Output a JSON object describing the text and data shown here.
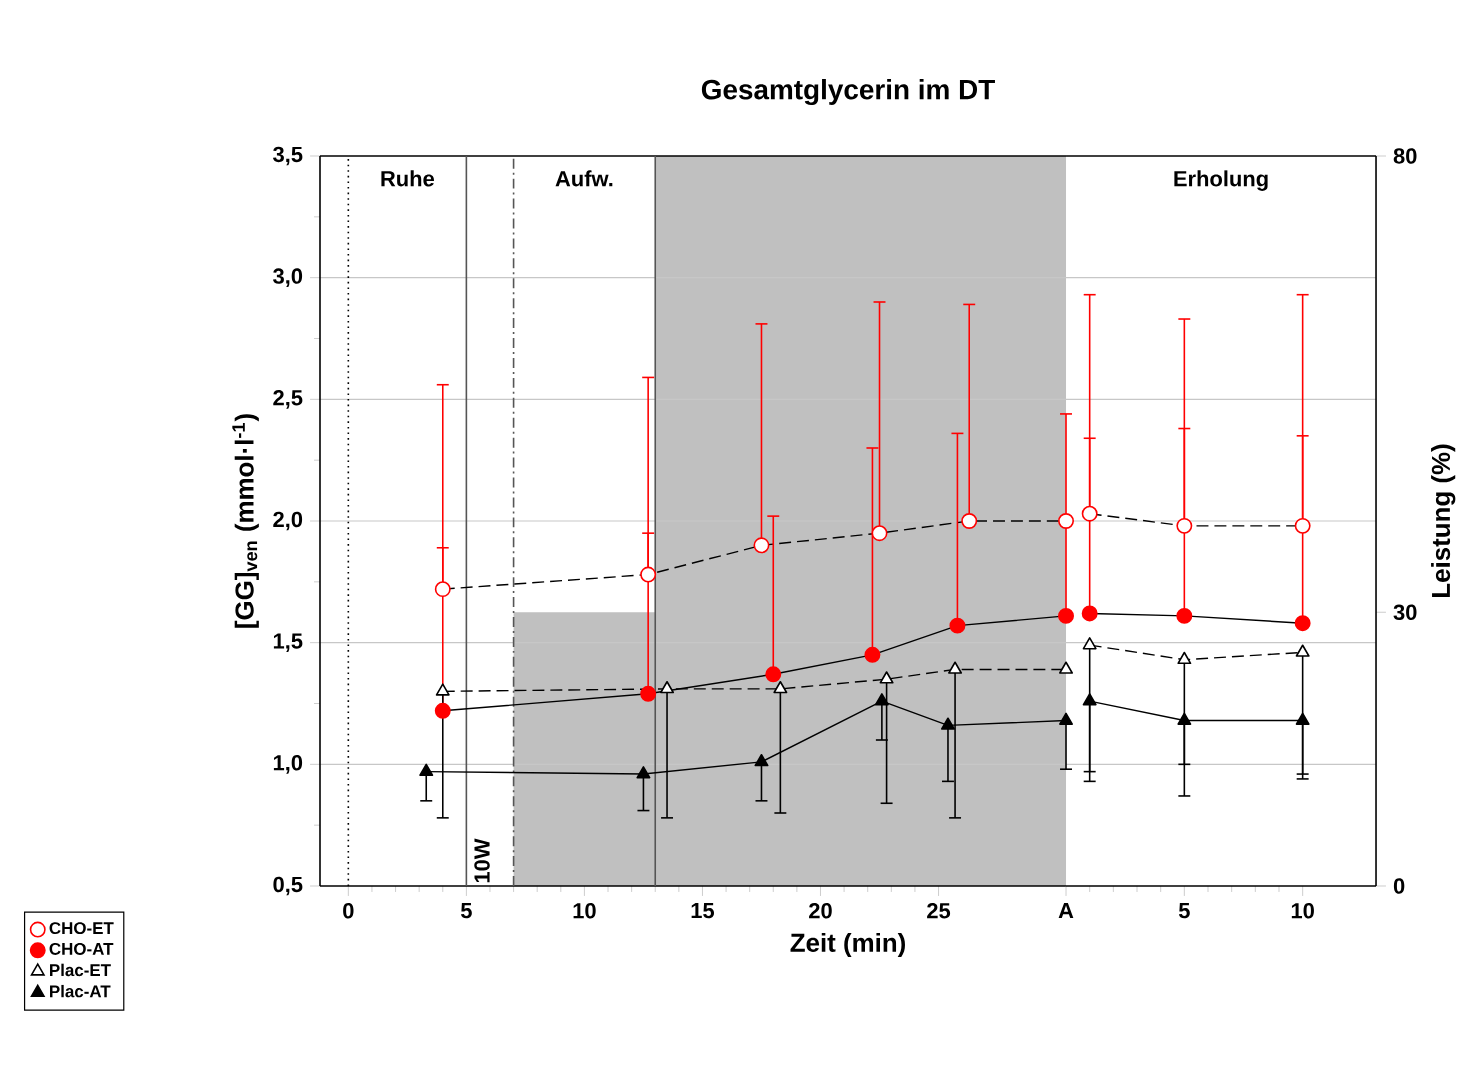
{
  "chart_data": [
    {
      "type": "line",
      "title": "Gesamtglycerin im DT",
      "xlabel": "Zeit (min)",
      "ylabel": "[GG]$_{ven}$ (mmol·l$^{-1}$)",
      "xlim": [
        -1.2,
        30.4
      ],
      "ylim": [
        0.5,
        3.5
      ],
      "y2lim": [
        0,
        80
      ],
      "xticks": [
        0,
        5,
        10,
        15,
        20,
        25
      ],
      "yticks": [
        {
          "value": 0.5,
          "label": "0,5"
        },
        {
          "value": 1.0,
          "label": "1,0"
        },
        {
          "value": 1.5,
          "label": "1,5"
        },
        {
          "value": 2.0,
          "label": "2,0"
        },
        {
          "value": 2.5,
          "label": "2,5"
        },
        {
          "value": 3.0,
          "label": "3,0"
        },
        {
          "value": 3.5,
          "label": "3,5"
        }
      ],
      "grid": "y",
      "legend": "bottom left",
      "series": [
        {
          "type": "area",
          "axis": "y2",
          "color": "#c0c0c0",
          "x": [
            7,
            7,
            13,
            13,
            30.4,
            30.4
          ],
          "values": [
            0,
            30,
            30,
            80,
            80,
            0
          ]
        },
        {
          "name": "CHO-ET",
          "color": "#ff0000",
          "marker": "circle-open",
          "line_style": "dashed",
          "x": [
            4.0,
            12.7,
            17.5,
            22.5,
            26.3,
            30.4
          ],
          "values": [
            1.72,
            1.78,
            1.9,
            1.95,
            2.0,
            2.0
          ],
          "errors": [
            [
              1.72,
              2.56
            ],
            [
              1.78,
              2.59
            ],
            [
              1.9,
              2.81
            ],
            [
              1.95,
              2.9
            ],
            [
              2.0,
              2.89
            ],
            null
          ]
        },
        {
          "name": "CHO-AT",
          "color": "#ff0000",
          "marker": "circle",
          "line_style": "solid",
          "x": [
            4.0,
            12.7,
            18.0,
            22.2,
            25.8,
            30.4
          ],
          "values": [
            1.22,
            1.29,
            1.37,
            1.45,
            1.57,
            1.61
          ],
          "errors": [
            [
              1.22,
              1.89
            ],
            [
              1.29,
              1.95
            ],
            [
              1.37,
              2.02
            ],
            [
              1.45,
              2.3
            ],
            [
              1.57,
              2.36
            ],
            [
              1.61,
              2.44
            ]
          ]
        },
        {
          "name": "Plac-ET",
          "color": "#000000",
          "marker": "triangle-open",
          "line_style": "dashed",
          "x": [
            4.0,
            13.5,
            18.3,
            22.8,
            25.7,
            30.4
          ],
          "values": [
            1.3,
            1.31,
            1.31,
            1.35,
            1.39,
            1.39
          ],
          "errors": [
            [
              0.78,
              1.3
            ],
            [
              0.78,
              1.31
            ],
            [
              0.8,
              1.31
            ],
            [
              0.84,
              1.35
            ],
            [
              0.78,
              1.39
            ],
            null
          ]
        },
        {
          "name": "Plac-AT",
          "color": "#000000",
          "marker": "triangle",
          "line_style": "solid",
          "x": [
            3.3,
            12.5,
            17.5,
            22.6,
            25.4,
            30.4
          ],
          "values": [
            0.97,
            0.96,
            1.01,
            1.26,
            1.16,
            1.18
          ],
          "errors": [
            [
              0.85,
              0.97
            ],
            [
              0.81,
              0.96
            ],
            [
              0.85,
              1.01
            ],
            [
              1.1,
              1.26
            ],
            [
              0.93,
              1.16
            ],
            [
              0.98,
              1.18
            ]
          ]
        }
      ],
      "ref_lines": [
        {
          "axis": "x",
          "value": 0,
          "color": "#000000",
          "line_style": "dotted"
        },
        {
          "axis": "x",
          "value": 5,
          "color": "#555555",
          "line_style": "solid"
        },
        {
          "axis": "x",
          "value": 7,
          "color": "#555555",
          "line_style": "dashdot"
        },
        {
          "axis": "x",
          "value": 13,
          "color": "#555555",
          "line_style": "solid"
        }
      ],
      "annotations": [
        "Ruhe",
        "10W",
        "Aufw."
      ]
    },
    {
      "type": "line",
      "y2label": "Leistung (%)",
      "xlim": [
        0,
        13.1
      ],
      "ylim": [
        0.5,
        3.5
      ],
      "y2lim": [
        0,
        80
      ],
      "y2ticks": [
        0,
        30,
        80
      ],
      "xticks": [
        {
          "value": 0,
          "label": "A"
        },
        5,
        10
      ],
      "series": [
        {
          "color": "#ff0000",
          "marker": "circle-open",
          "line_style": "dashed",
          "x": [
            1.0,
            5.0,
            10.0
          ],
          "values": [
            2.03,
            1.98,
            1.98
          ],
          "errors": [
            [
              2.03,
              2.93
            ],
            [
              1.98,
              2.83
            ],
            [
              1.98,
              2.93
            ]
          ]
        },
        {
          "color": "#ff0000",
          "marker": "circle",
          "line_style": "solid",
          "x": [
            1.0,
            5.0,
            10.0
          ],
          "values": [
            1.62,
            1.61,
            1.58
          ],
          "errors": [
            [
              1.62,
              2.34
            ],
            [
              1.61,
              2.38
            ],
            [
              1.58,
              2.35
            ]
          ]
        },
        {
          "color": "#000000",
          "marker": "triangle-open",
          "line_style": "dashed",
          "x": [
            1.0,
            5.0,
            10.0
          ],
          "values": [
            1.49,
            1.43,
            1.46
          ],
          "errors": [
            [
              0.93,
              1.49
            ],
            [
              0.87,
              1.43
            ],
            [
              0.94,
              1.46
            ]
          ]
        },
        {
          "color": "#000000",
          "marker": "triangle",
          "line_style": "solid",
          "x": [
            1.0,
            5.0,
            10.0
          ],
          "values": [
            1.26,
            1.18,
            1.18
          ],
          "errors": [
            [
              0.97,
              1.26
            ],
            [
              1.0,
              1.18
            ],
            [
              0.96,
              1.18
            ]
          ]
        }
      ],
      "annotations": [
        "Erholung"
      ]
    }
  ]
}
